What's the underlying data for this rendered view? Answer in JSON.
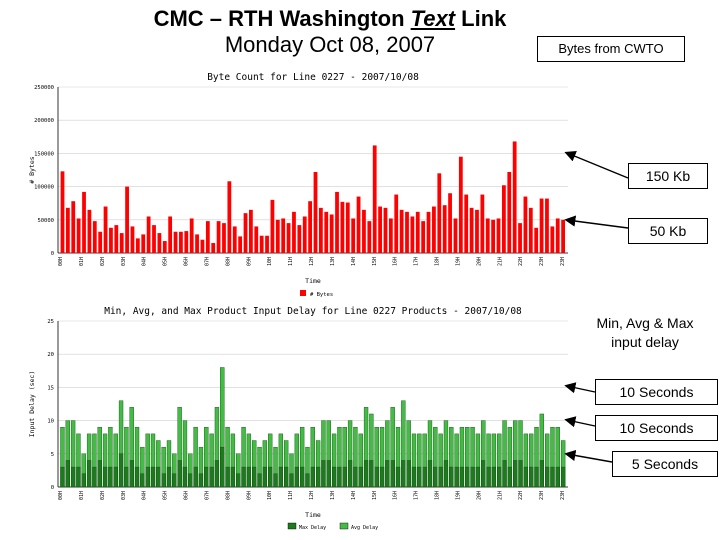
{
  "slide": {
    "title_prefix": "CMC – RTH Washington ",
    "title_emph": "Text",
    "title_suffix": " Link",
    "subtitle": "Monday Oct 08, 2007"
  },
  "callouts": {
    "bytes": "Bytes from CWTO",
    "kb150": "150 Kb",
    "kb50": "50 Kb",
    "delay_line1": "Min, Avg & Max",
    "delay_line2": "input delay",
    "sec10a": "10 Seconds",
    "sec10b": "10 Seconds",
    "sec5": "5 Seconds"
  },
  "colors": {
    "bytes_bar": "#ff0000",
    "delay_max": "#1e7a1e",
    "delay_avg": "#44bb44",
    "delay_min": "#0d5a0d"
  },
  "chart_data": [
    {
      "type": "bar",
      "title": "Byte Count for Line 0227 - 2007/10/08",
      "xlabel": "Time",
      "ylabel": "# Bytes",
      "ylim": [
        0,
        250000
      ],
      "yticks": [
        0,
        50000,
        100000,
        150000,
        200000,
        250000
      ],
      "ytick_labels": [
        "0",
        "50000",
        "100000",
        "150000",
        "200000",
        "250000"
      ],
      "xtick_labels": [
        "00H",
        "01H",
        "02H",
        "03H",
        "04H",
        "05H",
        "06H",
        "07H",
        "08H",
        "09H",
        "10H",
        "11H",
        "12H",
        "13H",
        "14H",
        "15H",
        "16H",
        "17H",
        "18H",
        "19H",
        "20H",
        "21H",
        "22H",
        "23H",
        "23H"
      ],
      "legend": [
        "# Bytes"
      ],
      "values": [
        123000,
        68000,
        78000,
        52000,
        92000,
        65000,
        48000,
        32000,
        70000,
        38000,
        42000,
        30000,
        100000,
        40000,
        22000,
        28000,
        55000,
        42000,
        30000,
        18000,
        55000,
        32000,
        32000,
        33000,
        52000,
        28000,
        20000,
        48000,
        15000,
        48000,
        45000,
        108000,
        40000,
        25000,
        60000,
        65000,
        40000,
        26000,
        26000,
        80000,
        50000,
        52000,
        45000,
        62000,
        42000,
        55000,
        78000,
        122000,
        68000,
        62000,
        58000,
        92000,
        77000,
        76000,
        52000,
        85000,
        65000,
        48000,
        162000,
        70000,
        68000,
        52000,
        88000,
        65000,
        62000,
        55000,
        62000,
        48000,
        62000,
        70000,
        120000,
        72000,
        90000,
        52000,
        145000,
        88000,
        68000,
        65000,
        88000,
        52000,
        50000,
        52000,
        102000,
        122000,
        168000,
        45000,
        85000,
        68000,
        38000,
        82000,
        82000,
        40000,
        52000,
        50000
      ]
    },
    {
      "type": "bar",
      "title": "Min, Avg, and Max Product Input Delay for Line 0227 Products - 2007/10/08",
      "xlabel": "Time",
      "ylabel": "Input Delay (sec)",
      "ylim": [
        0,
        25
      ],
      "yticks": [
        0,
        5,
        10,
        15,
        20,
        25
      ],
      "ytick_labels": [
        "0",
        "5",
        "10",
        "15",
        "20",
        "25"
      ],
      "xtick_labels": [
        "00H",
        "01H",
        "02H",
        "03H",
        "04H",
        "05H",
        "06H",
        "07H",
        "08H",
        "09H",
        "10H",
        "11H",
        "12H",
        "13H",
        "14H",
        "15H",
        "16H",
        "17H",
        "18H",
        "19H",
        "20H",
        "21H",
        "22H",
        "23H",
        "23H"
      ],
      "legend": [
        "Max Delay",
        "Avg Delay"
      ],
      "series": [
        {
          "name": "Max Delay",
          "values": [
            9,
            10,
            10,
            8,
            5,
            8,
            8,
            9,
            8,
            9,
            8,
            13,
            9,
            12,
            9,
            6,
            8,
            8,
            7,
            6,
            7,
            5,
            12,
            10,
            5,
            9,
            6,
            9,
            8,
            12,
            18,
            9,
            8,
            5,
            9,
            8,
            7,
            6,
            7,
            8,
            6,
            8,
            7,
            5,
            8,
            9,
            6,
            9,
            7,
            10,
            10,
            8,
            9,
            9,
            10,
            9,
            8,
            12,
            11,
            9,
            9,
            10,
            12,
            9,
            13,
            10,
            8,
            8,
            8,
            10,
            9,
            8,
            10,
            9,
            8,
            9,
            9,
            9,
            8,
            10,
            8,
            8,
            8,
            10,
            9,
            10,
            10,
            8,
            8,
            9,
            11,
            8,
            9,
            9,
            7
          ]
        },
        {
          "name": "Avg Delay",
          "values": [
            3,
            4,
            3,
            3,
            2,
            4,
            3,
            4,
            3,
            3,
            3,
            5,
            3,
            4,
            3,
            2,
            3,
            3,
            3,
            2,
            3,
            2,
            4,
            3,
            2,
            3,
            2,
            3,
            3,
            4,
            6,
            3,
            3,
            2,
            3,
            3,
            3,
            2,
            3,
            3,
            2,
            3,
            3,
            2,
            3,
            3,
            2,
            3,
            3,
            4,
            4,
            3,
            3,
            3,
            4,
            3,
            3,
            4,
            4,
            3,
            3,
            4,
            4,
            3,
            4,
            4,
            3,
            3,
            3,
            4,
            3,
            3,
            4,
            3,
            3,
            3,
            3,
            3,
            3,
            4,
            3,
            3,
            3,
            4,
            3,
            4,
            4,
            3,
            3,
            3,
            4,
            3,
            3,
            3,
            3
          ]
        }
      ]
    }
  ]
}
